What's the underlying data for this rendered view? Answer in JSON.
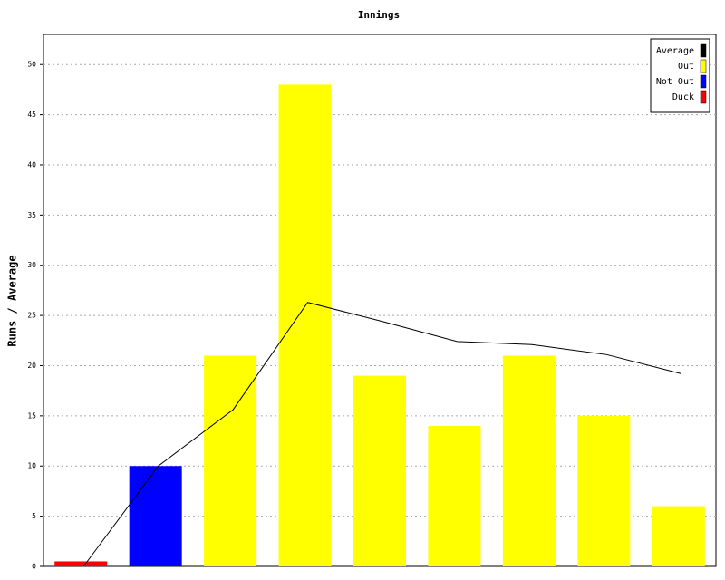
{
  "chart_data": {
    "type": "bar",
    "title": "Innings",
    "y_label": "Runs / Average",
    "categories": [
      null,
      null,
      null,
      null,
      null,
      null,
      null,
      null,
      null
    ],
    "series": [
      {
        "name": "Average",
        "color": "#000000",
        "style": "line",
        "values": [
          0,
          10,
          15.6,
          26.3,
          24.4,
          22.4,
          22.1,
          21.1,
          19.2
        ]
      },
      {
        "name": "Out",
        "color": "#ffff00",
        "style": "bar",
        "values": [
          null,
          null,
          21,
          48,
          19,
          14,
          21,
          15,
          6
        ]
      },
      {
        "name": "Not Out",
        "color": "#0000ff",
        "style": "bar",
        "values": [
          null,
          10,
          null,
          null,
          null,
          null,
          null,
          null,
          null
        ]
      },
      {
        "name": "Duck",
        "color": "#ff0000",
        "style": "bar",
        "values": [
          0.5,
          null,
          null,
          null,
          null,
          null,
          null,
          null,
          null
        ]
      }
    ],
    "ylim": [
      0,
      53
    ],
    "yticks": [
      0,
      5,
      10,
      15,
      20,
      25,
      30,
      35,
      40,
      45,
      50
    ],
    "grid": true,
    "legend": "top-right"
  }
}
